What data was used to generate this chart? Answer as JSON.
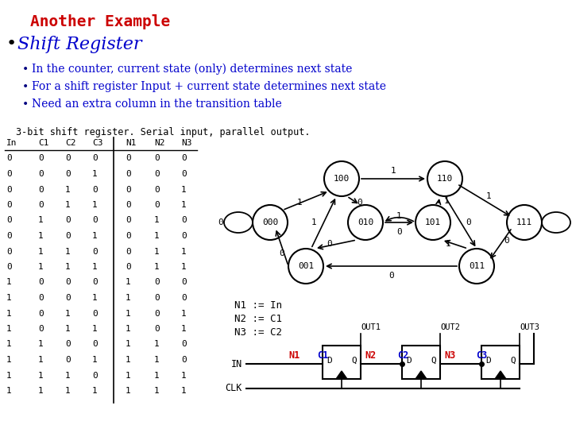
{
  "title": "Another Example",
  "title_color": "#CC0000",
  "bullet1": "Shift Register",
  "bullet1_color": "#0000CC",
  "sub_bullets": [
    "In the counter, current state (only) determines next state",
    "For a shift register Input + current state determines next state",
    "Need an extra column in the transition table"
  ],
  "sub_bullet_color": "#0000CC",
  "table_header": [
    "In",
    "C1",
    "C2",
    "C3",
    "N1",
    "N2",
    "N3"
  ],
  "table_data": [
    [
      0,
      0,
      0,
      0,
      0,
      0,
      0
    ],
    [
      0,
      0,
      0,
      1,
      0,
      0,
      0
    ],
    [
      0,
      0,
      1,
      0,
      0,
      0,
      1
    ],
    [
      0,
      0,
      1,
      1,
      0,
      0,
      1
    ],
    [
      0,
      1,
      0,
      0,
      0,
      1,
      0
    ],
    [
      0,
      1,
      0,
      1,
      0,
      1,
      0
    ],
    [
      0,
      1,
      1,
      0,
      0,
      1,
      1
    ],
    [
      0,
      1,
      1,
      1,
      0,
      1,
      1
    ],
    [
      1,
      0,
      0,
      0,
      1,
      0,
      0
    ],
    [
      1,
      0,
      0,
      1,
      1,
      0,
      0
    ],
    [
      1,
      0,
      1,
      0,
      1,
      0,
      1
    ],
    [
      1,
      0,
      1,
      1,
      1,
      0,
      1
    ],
    [
      1,
      1,
      0,
      0,
      1,
      1,
      0
    ],
    [
      1,
      1,
      0,
      1,
      1,
      1,
      0
    ],
    [
      1,
      1,
      1,
      0,
      1,
      1,
      1
    ],
    [
      1,
      1,
      1,
      1,
      1,
      1,
      1
    ]
  ],
  "state_diagram_title": "3-bit shift register. Serial input, parallel output.",
  "equations": [
    "N1 := In",
    "N2 := C1",
    "N3 := C2"
  ],
  "bg_color": "#FFFFFF"
}
